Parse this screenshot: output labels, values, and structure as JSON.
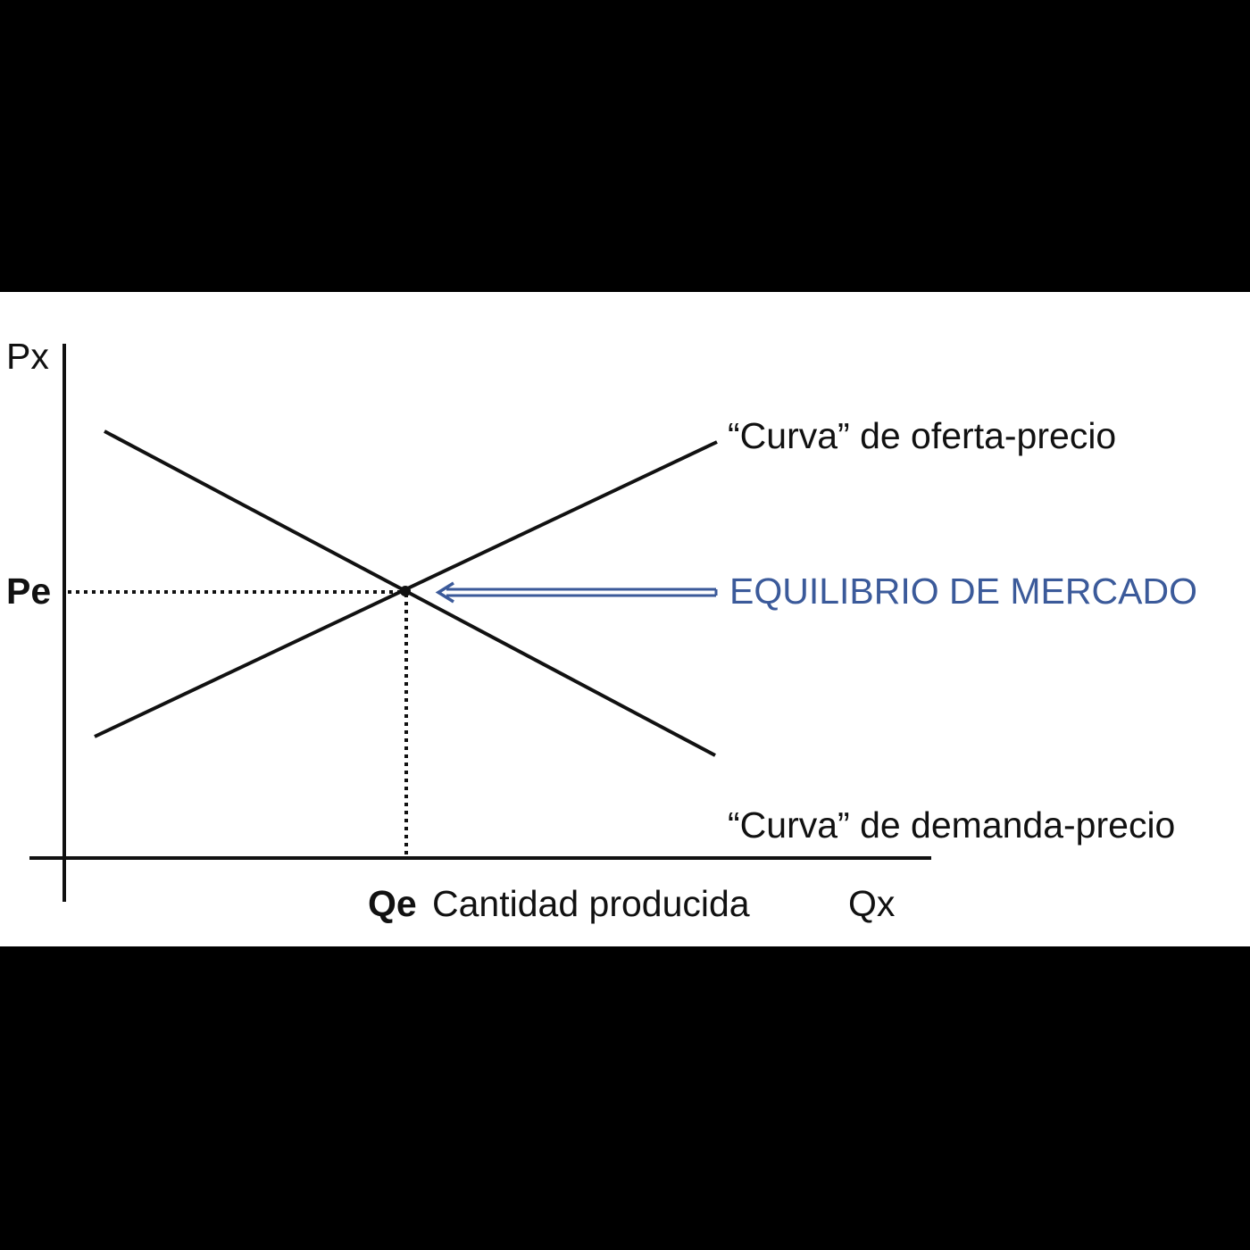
{
  "diagram": {
    "y_axis_label": "Px",
    "x_axis_label": "Qx",
    "price_marker": "Pe",
    "quantity_marker": "Qe",
    "x_axis_caption": "Cantidad producida",
    "supply_label": "“Curva” de oferta-precio",
    "demand_label": "“Curva” de demanda-precio",
    "equilibrium_label": "EQUILIBRIO DE MERCADO",
    "colors": {
      "background": "#000000",
      "panel": "#ffffff",
      "lines": "#111111",
      "equilibrium": "#3b5a9a"
    }
  }
}
